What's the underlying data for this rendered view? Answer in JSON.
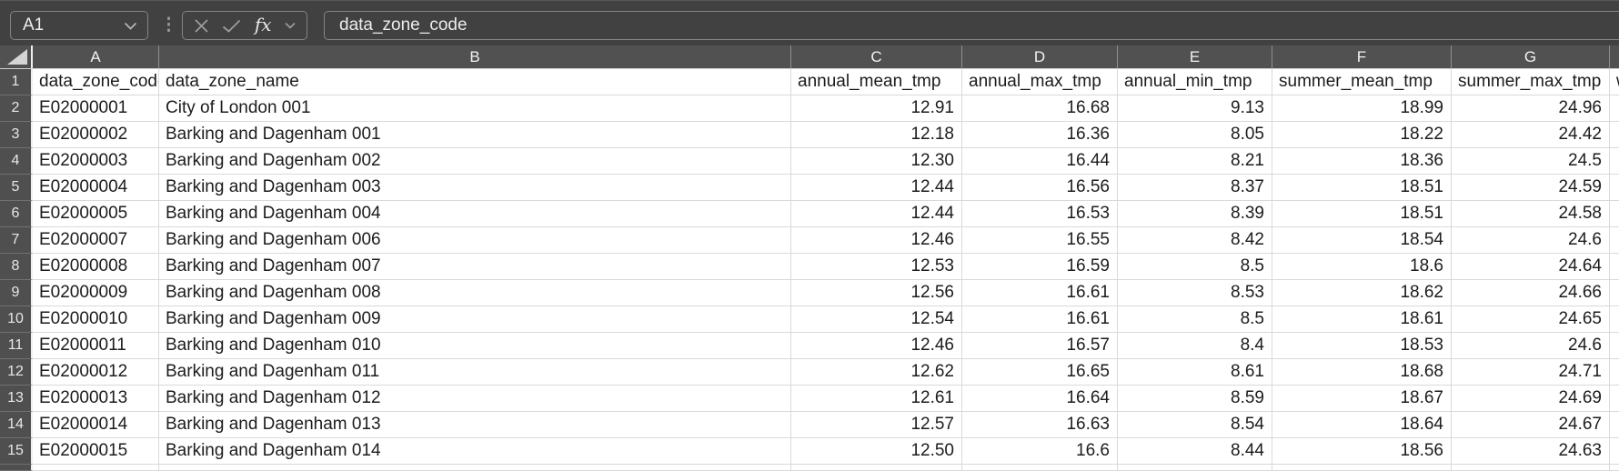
{
  "formula_bar": {
    "cell_reference": "A1",
    "name_box_dropdown_icon": "chevron-down-icon",
    "menu_dots_icon": "vertical-ellipsis-icon",
    "cancel_icon": "x-mark-icon",
    "accept_icon": "check-mark-icon",
    "function_label": "fx",
    "function_dropdown_icon": "chevron-down-icon",
    "formula_input_value": "data_zone_code"
  },
  "colors": {
    "toolbar_bg": "#414141",
    "header_bg": "#515151",
    "header_text": "#f3f3f3",
    "cell_bg": "#ffffff",
    "cell_text": "#1c1c1c",
    "gridline": "#d9d9d9",
    "widget_border": "#848484",
    "icon_gray": "#9d9d9d",
    "select_all_triangle": "#d5d5d5"
  },
  "sheet": {
    "select_all_icon": "corner-triangle-icon",
    "column_headers": [
      "A",
      "B",
      "C",
      "D",
      "E",
      "F",
      "G"
    ],
    "partial_next_column_text": "w",
    "row_numbers": [
      "1",
      "2",
      "3",
      "4",
      "5",
      "6",
      "7",
      "8",
      "9",
      "10",
      "11",
      "12",
      "13",
      "14",
      "15"
    ],
    "partial_row_number": "16",
    "header_row": [
      "data_zone_code",
      "data_zone_name",
      "annual_mean_tmp",
      "annual_max_tmp",
      "annual_min_tmp",
      "summer_mean_tmp",
      "summer_max_tmp"
    ],
    "rows": [
      [
        "E02000001",
        "City of London 001",
        "12.91",
        "16.68",
        "9.13",
        "18.99",
        "24.96"
      ],
      [
        "E02000002",
        "Barking and Dagenham 001",
        "12.18",
        "16.36",
        "8.05",
        "18.22",
        "24.42"
      ],
      [
        "E02000003",
        "Barking and Dagenham 002",
        "12.30",
        "16.44",
        "8.21",
        "18.36",
        "24.5"
      ],
      [
        "E02000004",
        "Barking and Dagenham 003",
        "12.44",
        "16.56",
        "8.37",
        "18.51",
        "24.59"
      ],
      [
        "E02000005",
        "Barking and Dagenham 004",
        "12.44",
        "16.53",
        "8.39",
        "18.51",
        "24.58"
      ],
      [
        "E02000007",
        "Barking and Dagenham 006",
        "12.46",
        "16.55",
        "8.42",
        "18.54",
        "24.6"
      ],
      [
        "E02000008",
        "Barking and Dagenham 007",
        "12.53",
        "16.59",
        "8.5",
        "18.6",
        "24.64"
      ],
      [
        "E02000009",
        "Barking and Dagenham 008",
        "12.56",
        "16.61",
        "8.53",
        "18.62",
        "24.66"
      ],
      [
        "E02000010",
        "Barking and Dagenham 009",
        "12.54",
        "16.61",
        "8.5",
        "18.61",
        "24.65"
      ],
      [
        "E02000011",
        "Barking and Dagenham 010",
        "12.46",
        "16.57",
        "8.4",
        "18.53",
        "24.6"
      ],
      [
        "E02000012",
        "Barking and Dagenham 011",
        "12.62",
        "16.65",
        "8.61",
        "18.68",
        "24.71"
      ],
      [
        "E02000013",
        "Barking and Dagenham 012",
        "12.61",
        "16.64",
        "8.59",
        "18.67",
        "24.69"
      ],
      [
        "E02000014",
        "Barking and Dagenham 013",
        "12.57",
        "16.63",
        "8.54",
        "18.64",
        "24.67"
      ],
      [
        "E02000015",
        "Barking and Dagenham 014",
        "12.50",
        "16.6",
        "8.44",
        "18.56",
        "24.63"
      ]
    ]
  }
}
